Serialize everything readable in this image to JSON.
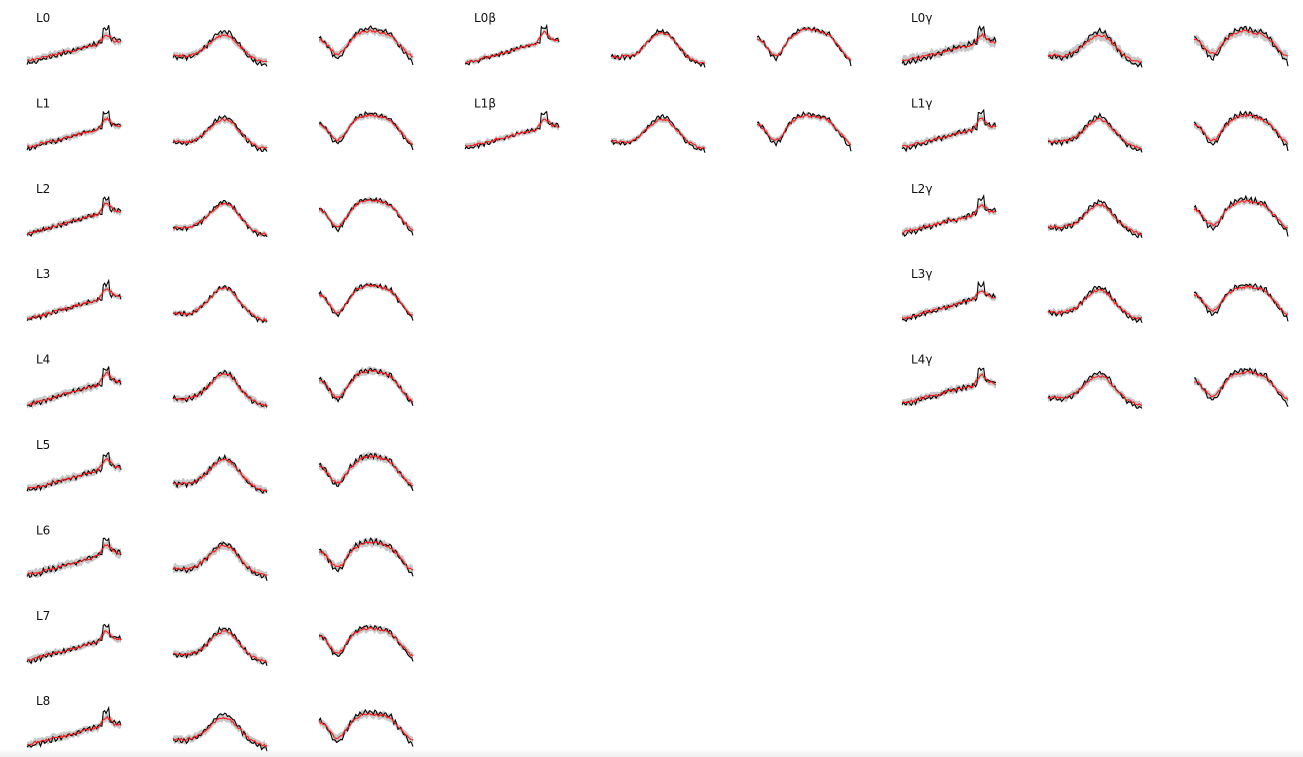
{
  "colors": {
    "band": "#c8c8c8",
    "prediction": "#ff1a1a",
    "target": "#000000",
    "background": "#ffffff"
  },
  "chart_data": {
    "type": "line",
    "grid": false,
    "legend": "none",
    "columns": [
      "L",
      "β",
      "γ"
    ],
    "series_styles": [
      {
        "role": "target",
        "color": "#000000"
      },
      {
        "role": "prediction",
        "color": "#ff1a1a"
      },
      {
        "role": "band",
        "color": "#c8c8c8"
      }
    ],
    "profile_shapes": [
      "ramp",
      "dome",
      "valley-dome"
    ],
    "panels": [
      {
        "label": "L0",
        "column": 0,
        "row": 0,
        "mismatch": 0.55,
        "band": 0.5,
        "noise": 0.55
      },
      {
        "label": "L1",
        "column": 0,
        "row": 1,
        "mismatch": 0.35,
        "band": 0.4,
        "noise": 0.55
      },
      {
        "label": "L2",
        "column": 0,
        "row": 2,
        "mismatch": 0.2,
        "band": 0.4,
        "noise": 0.55
      },
      {
        "label": "L3",
        "column": 0,
        "row": 3,
        "mismatch": 0.15,
        "band": 0.35,
        "noise": 0.55
      },
      {
        "label": "L4",
        "column": 0,
        "row": 4,
        "mismatch": 0.15,
        "band": 0.6,
        "noise": 0.6
      },
      {
        "label": "L5",
        "column": 0,
        "row": 5,
        "mismatch": 0.2,
        "band": 0.6,
        "noise": 0.6
      },
      {
        "label": "L6",
        "column": 0,
        "row": 6,
        "mismatch": 0.3,
        "band": 0.7,
        "noise": 0.65
      },
      {
        "label": "L7",
        "column": 0,
        "row": 7,
        "mismatch": 0.35,
        "band": 0.5,
        "noise": 0.6
      },
      {
        "label": "L8",
        "column": 0,
        "row": 8,
        "mismatch": 0.5,
        "band": 0.6,
        "noise": 0.65
      },
      {
        "label": "L0β",
        "column": 1,
        "row": 0,
        "mismatch": 0.2,
        "band": 0.3,
        "noise": 0.55
      },
      {
        "label": "L1β",
        "column": 1,
        "row": 1,
        "mismatch": 0.4,
        "band": 0.35,
        "noise": 0.55
      },
      {
        "label": "L0γ",
        "column": 2,
        "row": 0,
        "mismatch": 0.6,
        "band": 0.8,
        "noise": 0.7
      },
      {
        "label": "L1γ",
        "column": 2,
        "row": 1,
        "mismatch": 0.4,
        "band": 0.5,
        "noise": 0.6
      },
      {
        "label": "L2γ",
        "column": 2,
        "row": 2,
        "mismatch": 0.45,
        "band": 0.4,
        "noise": 0.7
      },
      {
        "label": "L3γ",
        "column": 2,
        "row": 3,
        "mismatch": 0.4,
        "band": 0.4,
        "noise": 0.6
      },
      {
        "label": "L4γ",
        "column": 2,
        "row": 4,
        "mismatch": 0.45,
        "band": 0.5,
        "noise": 0.65
      }
    ]
  }
}
